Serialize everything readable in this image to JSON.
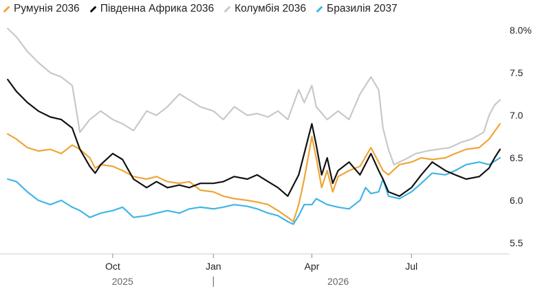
{
  "chart_data": {
    "type": "line",
    "title": "",
    "xlabel": "",
    "ylabel": "",
    "ylim": [
      5.3,
      8.05
    ],
    "xlim": [
      "2025-06-25",
      "2026-09-25"
    ],
    "y_ticks": [
      {
        "value": 8.0,
        "label": "8.0%"
      },
      {
        "value": 7.5,
        "label": "7.5"
      },
      {
        "value": 7.0,
        "label": "7.0"
      },
      {
        "value": 6.5,
        "label": "6.5"
      },
      {
        "value": 6.0,
        "label": "6.0"
      },
      {
        "value": 5.5,
        "label": "5.5"
      }
    ],
    "x_ticks": [
      {
        "date": "2025-10-01",
        "label": "Oct"
      },
      {
        "date": "2026-01-01",
        "label": "Jan"
      },
      {
        "date": "2026-04-01",
        "label": "Apr"
      },
      {
        "date": "2026-07-01",
        "label": "Jul"
      }
    ],
    "year_labels": [
      {
        "date": "2025-10-10",
        "label": "2025"
      },
      {
        "date": "2026-04-25",
        "label": "2026"
      }
    ],
    "year_separator": "2026-01-01",
    "legend_position": "top-left",
    "grid": false,
    "series": [
      {
        "name": "Колумбія 2036",
        "color": "#c8c8c8",
        "points": [
          [
            "2025-06-27",
            8.02
          ],
          [
            "2025-07-05",
            7.92
          ],
          [
            "2025-07-15",
            7.75
          ],
          [
            "2025-07-25",
            7.62
          ],
          [
            "2025-08-05",
            7.5
          ],
          [
            "2025-08-15",
            7.45
          ],
          [
            "2025-08-25",
            7.35
          ],
          [
            "2025-09-01",
            6.8
          ],
          [
            "2025-09-10",
            6.95
          ],
          [
            "2025-09-20",
            7.05
          ],
          [
            "2025-10-01",
            6.95
          ],
          [
            "2025-10-10",
            6.9
          ],
          [
            "2025-10-20",
            6.82
          ],
          [
            "2025-11-01",
            7.05
          ],
          [
            "2025-11-10",
            7.0
          ],
          [
            "2025-11-20",
            7.1
          ],
          [
            "2025-12-01",
            7.25
          ],
          [
            "2025-12-10",
            7.18
          ],
          [
            "2025-12-20",
            7.1
          ],
          [
            "2026-01-01",
            7.05
          ],
          [
            "2026-01-10",
            6.95
          ],
          [
            "2026-01-20",
            7.1
          ],
          [
            "2026-02-01",
            7.0
          ],
          [
            "2026-02-10",
            7.02
          ],
          [
            "2026-02-20",
            6.98
          ],
          [
            "2026-03-01",
            7.05
          ],
          [
            "2026-03-10",
            6.95
          ],
          [
            "2026-03-20",
            7.3
          ],
          [
            "2026-03-25",
            7.15
          ],
          [
            "2026-04-01",
            7.35
          ],
          [
            "2026-04-05",
            7.1
          ],
          [
            "2026-04-15",
            6.95
          ],
          [
            "2026-04-25",
            7.05
          ],
          [
            "2026-05-05",
            6.95
          ],
          [
            "2026-05-15",
            7.25
          ],
          [
            "2026-05-25",
            7.45
          ],
          [
            "2026-06-01",
            7.3
          ],
          [
            "2026-06-05",
            6.85
          ],
          [
            "2026-06-10",
            6.6
          ],
          [
            "2026-06-15",
            6.42
          ],
          [
            "2026-06-25",
            6.48
          ],
          [
            "2026-07-05",
            6.55
          ],
          [
            "2026-07-15",
            6.58
          ],
          [
            "2026-07-25",
            6.6
          ],
          [
            "2026-08-05",
            6.62
          ],
          [
            "2026-08-15",
            6.68
          ],
          [
            "2026-08-25",
            6.72
          ],
          [
            "2026-09-05",
            6.8
          ],
          [
            "2026-09-10",
            7.0
          ],
          [
            "2026-09-15",
            7.12
          ],
          [
            "2026-09-20",
            7.18
          ]
        ]
      },
      {
        "name": "Бразилія 2037",
        "color": "#3fb5e5",
        "points": [
          [
            "2025-06-27",
            6.25
          ],
          [
            "2025-07-05",
            6.22
          ],
          [
            "2025-07-15",
            6.1
          ],
          [
            "2025-07-25",
            6.0
          ],
          [
            "2025-08-05",
            5.95
          ],
          [
            "2025-08-15",
            6.0
          ],
          [
            "2025-08-25",
            5.92
          ],
          [
            "2025-09-01",
            5.88
          ],
          [
            "2025-09-10",
            5.8
          ],
          [
            "2025-09-20",
            5.85
          ],
          [
            "2025-10-01",
            5.88
          ],
          [
            "2025-10-10",
            5.92
          ],
          [
            "2025-10-20",
            5.8
          ],
          [
            "2025-11-01",
            5.82
          ],
          [
            "2025-11-10",
            5.85
          ],
          [
            "2025-11-20",
            5.88
          ],
          [
            "2025-12-01",
            5.85
          ],
          [
            "2025-12-10",
            5.9
          ],
          [
            "2025-12-20",
            5.92
          ],
          [
            "2026-01-01",
            5.9
          ],
          [
            "2026-01-10",
            5.92
          ],
          [
            "2026-01-20",
            5.95
          ],
          [
            "2026-02-01",
            5.93
          ],
          [
            "2026-02-10",
            5.9
          ],
          [
            "2026-02-20",
            5.85
          ],
          [
            "2026-03-01",
            5.82
          ],
          [
            "2026-03-10",
            5.75
          ],
          [
            "2026-03-15",
            5.72
          ],
          [
            "2026-03-20",
            5.82
          ],
          [
            "2026-03-25",
            5.95
          ],
          [
            "2026-04-01",
            5.95
          ],
          [
            "2026-04-05",
            6.02
          ],
          [
            "2026-04-15",
            5.95
          ],
          [
            "2026-04-25",
            5.92
          ],
          [
            "2026-05-05",
            5.9
          ],
          [
            "2026-05-15",
            6.0
          ],
          [
            "2026-05-20",
            6.15
          ],
          [
            "2026-05-25",
            6.08
          ],
          [
            "2026-06-01",
            6.1
          ],
          [
            "2026-06-05",
            6.25
          ],
          [
            "2026-06-10",
            6.05
          ],
          [
            "2026-06-20",
            6.02
          ],
          [
            "2026-07-01",
            6.1
          ],
          [
            "2026-07-10",
            6.2
          ],
          [
            "2026-07-20",
            6.32
          ],
          [
            "2026-08-01",
            6.3
          ],
          [
            "2026-08-10",
            6.35
          ],
          [
            "2026-08-20",
            6.42
          ],
          [
            "2026-09-01",
            6.45
          ],
          [
            "2026-09-10",
            6.42
          ],
          [
            "2026-09-20",
            6.5
          ]
        ]
      },
      {
        "name": "Румунія 2036",
        "color": "#f0a535",
        "points": [
          [
            "2025-06-27",
            6.78
          ],
          [
            "2025-07-05",
            6.72
          ],
          [
            "2025-07-15",
            6.62
          ],
          [
            "2025-07-25",
            6.58
          ],
          [
            "2025-08-05",
            6.6
          ],
          [
            "2025-08-15",
            6.55
          ],
          [
            "2025-08-25",
            6.65
          ],
          [
            "2025-09-01",
            6.6
          ],
          [
            "2025-09-10",
            6.5
          ],
          [
            "2025-09-15",
            6.38
          ],
          [
            "2025-09-20",
            6.42
          ],
          [
            "2025-10-01",
            6.4
          ],
          [
            "2025-10-10",
            6.35
          ],
          [
            "2025-10-20",
            6.28
          ],
          [
            "2025-11-01",
            6.25
          ],
          [
            "2025-11-10",
            6.28
          ],
          [
            "2025-11-20",
            6.22
          ],
          [
            "2025-12-01",
            6.2
          ],
          [
            "2025-12-10",
            6.22
          ],
          [
            "2025-12-20",
            6.12
          ],
          [
            "2026-01-01",
            6.1
          ],
          [
            "2026-01-10",
            6.05
          ],
          [
            "2026-01-20",
            6.02
          ],
          [
            "2026-02-01",
            6.0
          ],
          [
            "2026-02-10",
            5.98
          ],
          [
            "2026-02-20",
            5.95
          ],
          [
            "2026-03-01",
            5.88
          ],
          [
            "2026-03-10",
            5.8
          ],
          [
            "2026-03-15",
            5.75
          ],
          [
            "2026-03-20",
            5.95
          ],
          [
            "2026-03-25",
            6.25
          ],
          [
            "2026-04-01",
            6.75
          ],
          [
            "2026-04-05",
            6.5
          ],
          [
            "2026-04-10",
            6.15
          ],
          [
            "2026-04-15",
            6.35
          ],
          [
            "2026-04-20",
            6.1
          ],
          [
            "2026-04-25",
            6.28
          ],
          [
            "2026-05-05",
            6.35
          ],
          [
            "2026-05-15",
            6.4
          ],
          [
            "2026-05-25",
            6.62
          ],
          [
            "2026-06-01",
            6.45
          ],
          [
            "2026-06-05",
            6.35
          ],
          [
            "2026-06-10",
            6.3
          ],
          [
            "2026-06-20",
            6.42
          ],
          [
            "2026-07-01",
            6.45
          ],
          [
            "2026-07-10",
            6.5
          ],
          [
            "2026-07-20",
            6.48
          ],
          [
            "2026-08-01",
            6.5
          ],
          [
            "2026-08-10",
            6.55
          ],
          [
            "2026-08-20",
            6.6
          ],
          [
            "2026-09-01",
            6.62
          ],
          [
            "2026-09-10",
            6.72
          ],
          [
            "2026-09-20",
            6.9
          ]
        ]
      },
      {
        "name": "Південна Африка 2036",
        "color": "#111111",
        "points": [
          [
            "2025-06-27",
            7.42
          ],
          [
            "2025-07-05",
            7.28
          ],
          [
            "2025-07-15",
            7.15
          ],
          [
            "2025-07-25",
            7.05
          ],
          [
            "2025-08-05",
            6.98
          ],
          [
            "2025-08-15",
            6.95
          ],
          [
            "2025-08-25",
            6.85
          ],
          [
            "2025-09-01",
            6.6
          ],
          [
            "2025-09-10",
            6.4
          ],
          [
            "2025-09-15",
            6.32
          ],
          [
            "2025-09-20",
            6.42
          ],
          [
            "2025-10-01",
            6.55
          ],
          [
            "2025-10-10",
            6.48
          ],
          [
            "2025-10-20",
            6.25
          ],
          [
            "2025-11-01",
            6.15
          ],
          [
            "2025-11-10",
            6.22
          ],
          [
            "2025-11-20",
            6.15
          ],
          [
            "2025-12-01",
            6.18
          ],
          [
            "2025-12-10",
            6.15
          ],
          [
            "2025-12-20",
            6.2
          ],
          [
            "2026-01-01",
            6.2
          ],
          [
            "2026-01-10",
            6.22
          ],
          [
            "2026-01-20",
            6.28
          ],
          [
            "2026-02-01",
            6.25
          ],
          [
            "2026-02-10",
            6.3
          ],
          [
            "2026-02-20",
            6.22
          ],
          [
            "2026-03-01",
            6.15
          ],
          [
            "2026-03-10",
            6.05
          ],
          [
            "2026-03-20",
            6.3
          ],
          [
            "2026-03-25",
            6.55
          ],
          [
            "2026-04-01",
            6.9
          ],
          [
            "2026-04-05",
            6.65
          ],
          [
            "2026-04-10",
            6.3
          ],
          [
            "2026-04-15",
            6.5
          ],
          [
            "2026-04-20",
            6.2
          ],
          [
            "2026-04-25",
            6.35
          ],
          [
            "2026-05-05",
            6.45
          ],
          [
            "2026-05-15",
            6.3
          ],
          [
            "2026-05-25",
            6.55
          ],
          [
            "2026-06-01",
            6.35
          ],
          [
            "2026-06-05",
            6.25
          ],
          [
            "2026-06-10",
            6.1
          ],
          [
            "2026-06-20",
            6.05
          ],
          [
            "2026-07-01",
            6.15
          ],
          [
            "2026-07-10",
            6.3
          ],
          [
            "2026-07-20",
            6.45
          ],
          [
            "2026-08-01",
            6.35
          ],
          [
            "2026-08-10",
            6.3
          ],
          [
            "2026-08-20",
            6.25
          ],
          [
            "2026-09-01",
            6.28
          ],
          [
            "2026-09-10",
            6.38
          ],
          [
            "2026-09-15",
            6.5
          ],
          [
            "2026-09-20",
            6.6
          ]
        ]
      }
    ],
    "legend": [
      {
        "name": "Румунія 2036",
        "color": "#f0a535"
      },
      {
        "name": "Південна Африка 2036",
        "color": "#111111"
      },
      {
        "name": "Колумбія 2036",
        "color": "#c8c8c8"
      },
      {
        "name": "Бразилія 2037",
        "color": "#3fb5e5"
      }
    ]
  }
}
